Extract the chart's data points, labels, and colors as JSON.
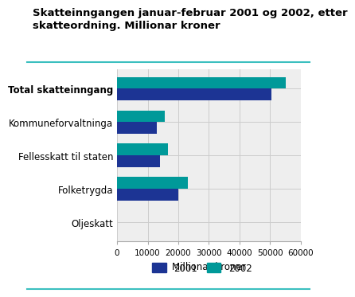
{
  "title_line1": "Skatteinngangen januar-februar 2001 og 2002, etter",
  "title_line2": "skatteordning. Millionar kroner",
  "categories": [
    "Total skatteinngang",
    "Kommuneforvaltninga",
    "Fellesskatt til staten",
    "Folketrygda",
    "Oljeskatt"
  ],
  "values_2001": [
    50500,
    13000,
    14000,
    20000,
    0
  ],
  "values_2002": [
    55000,
    15500,
    16500,
    23000,
    0
  ],
  "color_2001": "#1c3494",
  "color_2002": "#009999",
  "xlabel": "Millionar kroner",
  "xlim": [
    0,
    60000
  ],
  "xticks": [
    0,
    10000,
    20000,
    30000,
    40000,
    50000,
    60000
  ],
  "xticklabels": [
    "0",
    "10000",
    "20000",
    "30000",
    "40000",
    "50000",
    "60000"
  ],
  "legend_labels": [
    "2001",
    "2002"
  ],
  "grid_color": "#cccccc",
  "plot_bg_color": "#eeeeee",
  "fig_bg_color": "#ffffff",
  "title_fontsize": 9.5,
  "ylabel_fontsize": 8.5,
  "xlabel_fontsize": 8.5,
  "tick_fontsize": 7.5,
  "legend_fontsize": 8.5,
  "bar_height": 0.35,
  "teal_line_color": "#3bbfbf"
}
